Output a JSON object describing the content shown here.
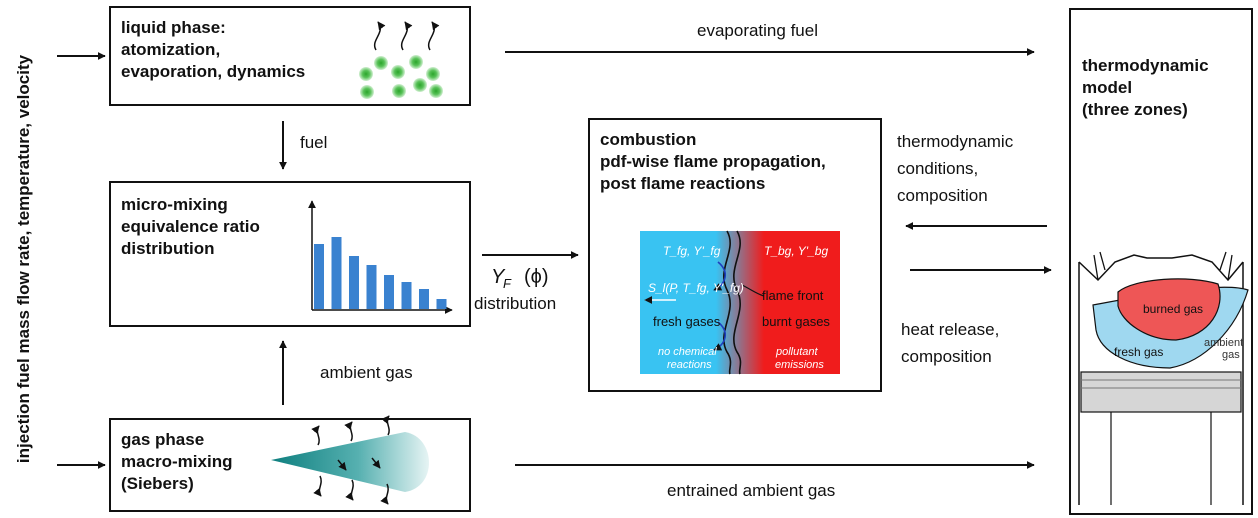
{
  "side_label": "injection fuel mass flow rate, temperature, velocity",
  "liquid_box": {
    "lines": [
      "liquid phase:",
      "atomization,",
      "evaporation, dynamics"
    ]
  },
  "micro_box": {
    "lines": [
      "micro-mixing",
      "equivalence ratio",
      "distribution"
    ]
  },
  "gas_box": {
    "lines": [
      "gas phase",
      "macro-mixing",
      "(Siebers)"
    ]
  },
  "combustion_box": {
    "lines": [
      "combustion",
      "pdf-wise flame propagation,",
      "post flame reactions"
    ],
    "flame": {
      "fresh_state": "T_fg, Y'_fg",
      "burnt_state": "T_bg, Y'_bg",
      "speed": "S_l(P, T_fg, Y'_fg)",
      "flame_front": "flame front",
      "fresh_gases": "fresh gases",
      "burnt_gases": "burnt gases",
      "no_chem_1": "no chemical",
      "no_chem_2": "reactions",
      "pollutant_1": "pollutant",
      "pollutant_2": "emissions",
      "colors": {
        "fresh": "#39c3f2",
        "burnt": "#f01c1c"
      }
    }
  },
  "thermo_box": {
    "lines": [
      "thermodynamic",
      "model",
      "(three zones)"
    ],
    "engine": {
      "burned": "burned gas",
      "fresh": "fresh gas",
      "ambient_1": "ambient",
      "ambient_2": "gas"
    }
  },
  "labels": {
    "evaporating_fuel": "evaporating fuel",
    "fuel": "fuel",
    "ambient_gas": "ambient gas",
    "yf_distribution": "distribution",
    "thermo_conditions": [
      "thermodynamic",
      "conditions,",
      "composition"
    ],
    "heat_release": [
      "heat release,",
      "composition"
    ],
    "entrained_ambient_gas": "entrained ambient gas"
  },
  "chart_data": {
    "type": "bar",
    "values": [
      6.5,
      7.2,
      5.3,
      4.4,
      3.4,
      2.7,
      2.0,
      1.0
    ],
    "ylim": [
      0,
      10
    ],
    "color": "#3a82d0"
  }
}
